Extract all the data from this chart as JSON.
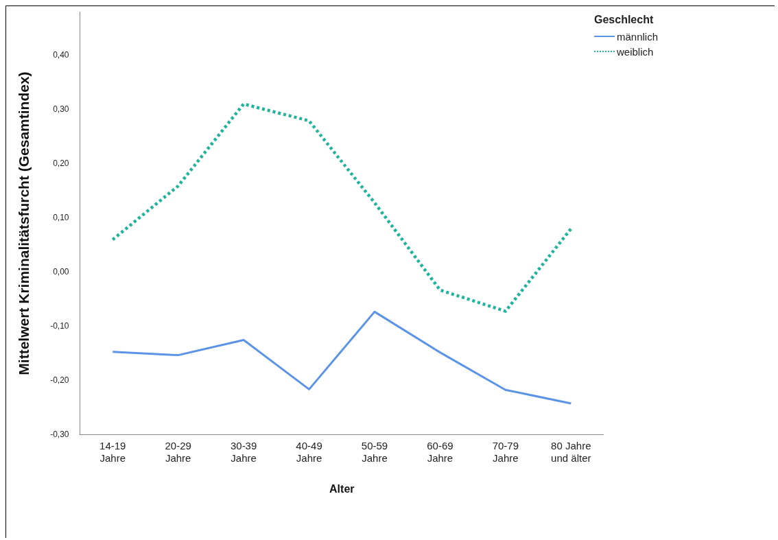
{
  "chart_data": {
    "type": "line",
    "xlabel": "Alter",
    "ylabel": "Mittelwert Kriminalitätsfurcht (Gesamtindex)",
    "legend_title": "Geschlecht",
    "legend": "top right",
    "grid": false,
    "marker": "none",
    "categories": [
      "14-19\nJahre",
      "20-29\nJahre",
      "30-39\nJahre",
      "40-49\nJahre",
      "50-59\nJahre",
      "60-69\nJahre",
      "70-79\nJahre",
      "80 Jahre\nund älter"
    ],
    "ylim": [
      -0.3,
      0.48
    ],
    "yticks": [
      {
        "value": -0.3,
        "label": "-0,30"
      },
      {
        "value": -0.2,
        "label": "-0,20"
      },
      {
        "value": -0.1,
        "label": "-0,10"
      },
      {
        "value": 0,
        "label": "0,00"
      },
      {
        "value": 0.1,
        "label": "0,10"
      },
      {
        "value": 0.2,
        "label": "0,20"
      },
      {
        "value": 0.3,
        "label": "0,30"
      },
      {
        "value": 0.4,
        "label": "0,40"
      }
    ],
    "series": [
      {
        "name": "männlich",
        "color": "#5b93e6",
        "line_style": "solid",
        "values": [
          -0.147,
          -0.153,
          -0.125,
          -0.216,
          -0.073,
          -0.148,
          -0.217,
          -0.242
        ]
      },
      {
        "name": "weiblich",
        "color": "#1fb39c",
        "line_style": "dotted",
        "values": [
          0.06,
          0.159,
          0.31,
          0.279,
          0.128,
          -0.033,
          -0.072,
          0.08
        ]
      }
    ]
  }
}
